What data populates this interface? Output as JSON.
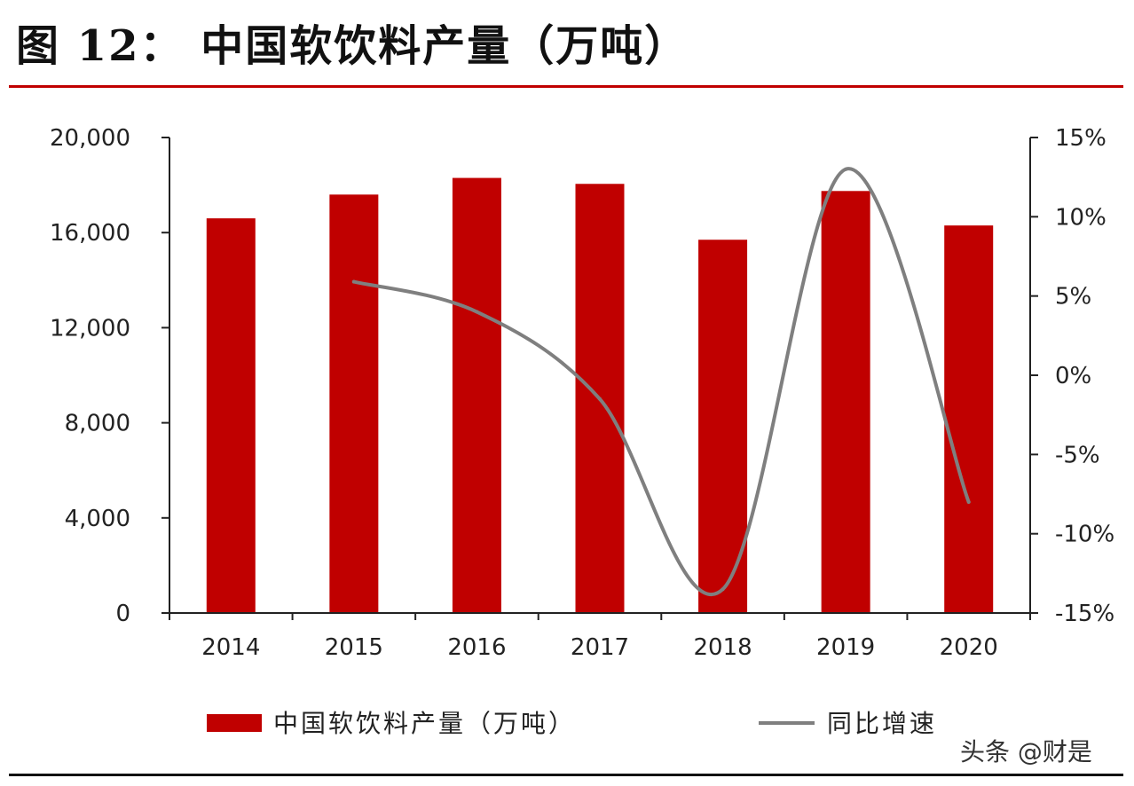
{
  "title": "图 12： 中国软饮料产量（万吨）",
  "watermark": "头条 @财是",
  "colors": {
    "bar": "#c00000",
    "line": "#7f7f7f",
    "axis": "#222222"
  },
  "chart_data": {
    "type": "bar",
    "categories": [
      "2014",
      "2015",
      "2016",
      "2017",
      "2018",
      "2019",
      "2020"
    ],
    "series": [
      {
        "name": "中国软饮料产量（万吨）",
        "type": "bar",
        "axis": "left",
        "values": [
          16600,
          17600,
          18300,
          18050,
          15700,
          17750,
          16300
        ]
      },
      {
        "name": "同比增速",
        "type": "line",
        "axis": "right",
        "values": [
          null,
          5.9,
          4.0,
          -1.5,
          -13.5,
          13.0,
          -8.0
        ]
      }
    ],
    "y_left": {
      "ylim": [
        0,
        20000
      ],
      "ticks": [
        "0",
        "4,000",
        "8,000",
        "12,000",
        "16,000",
        "20,000"
      ]
    },
    "y_right": {
      "ylim": [
        -15,
        15
      ],
      "ticks": [
        "-15%",
        "-10%",
        "-5%",
        "0%",
        "5%",
        "10%",
        "15%"
      ]
    },
    "legend": {
      "position": "bottom"
    },
    "grid": false
  }
}
